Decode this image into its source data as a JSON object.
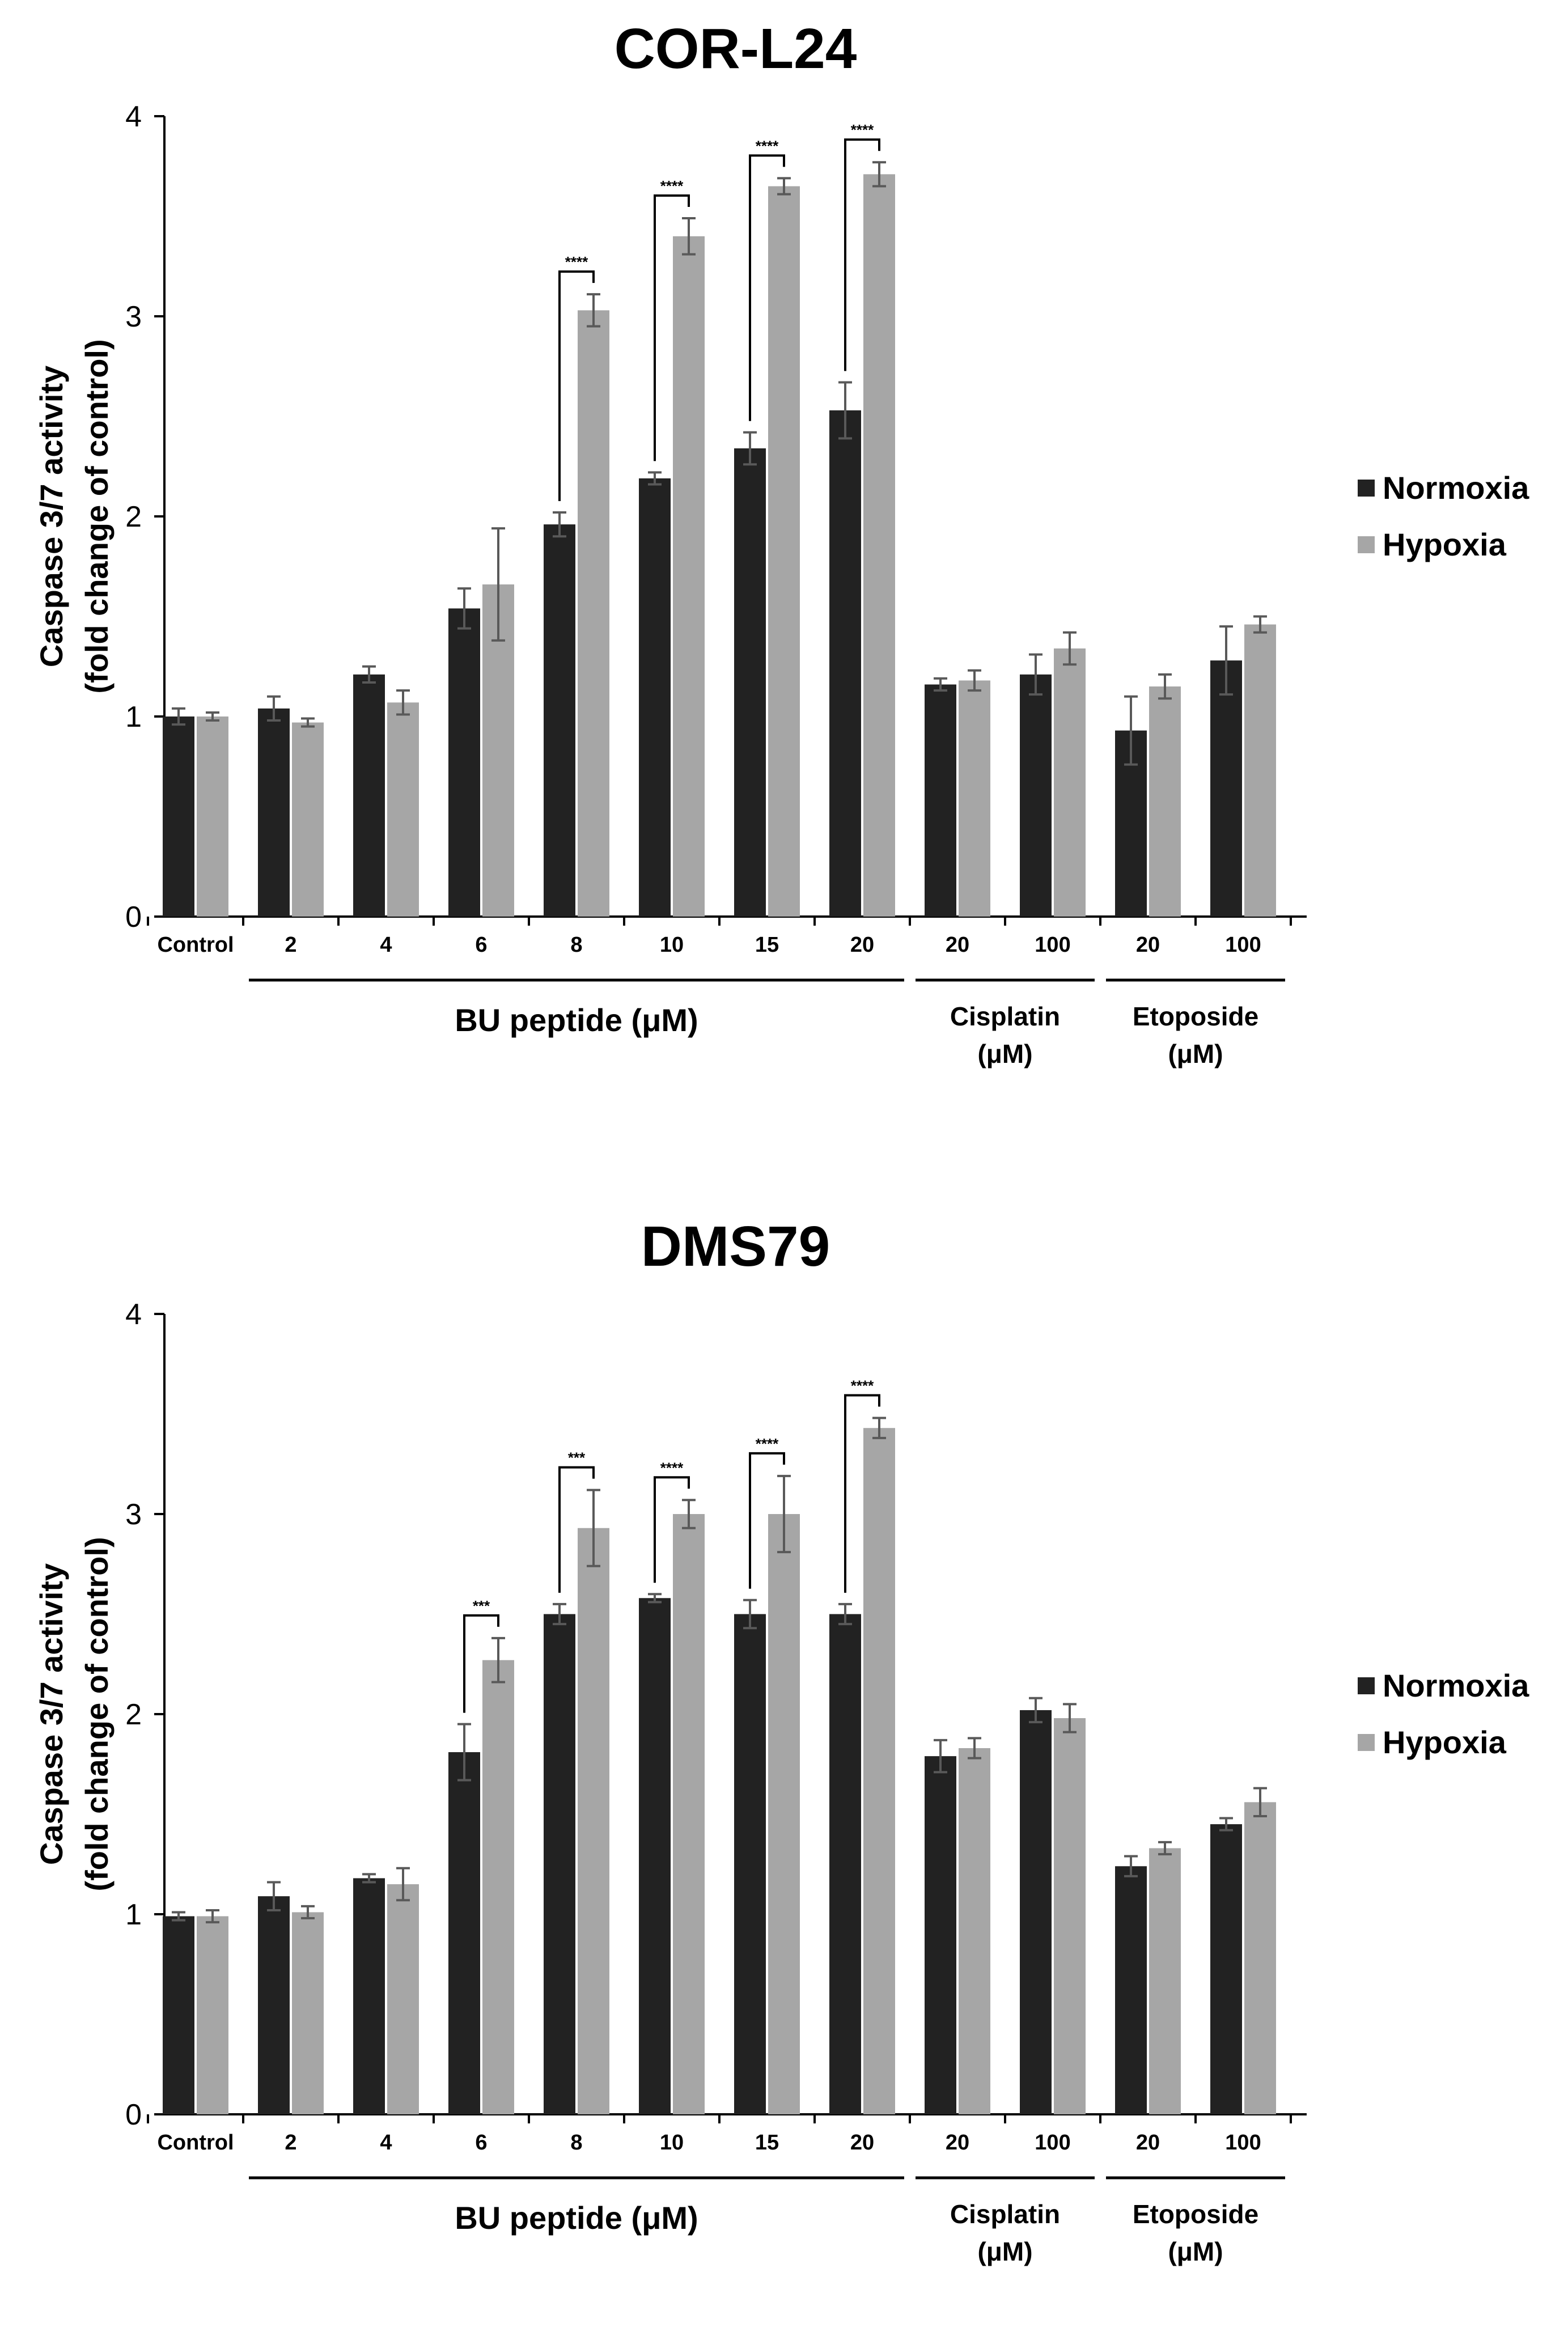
{
  "chart_data": [
    {
      "type": "bar",
      "title": "COR-L24",
      "ylabel": [
        "Caspase 3/7 activity",
        "(fold change of control)"
      ],
      "ylim": [
        0,
        4
      ],
      "yticks": [
        "0",
        "1",
        "2",
        "3",
        "4"
      ],
      "categories": [
        "Control",
        "2",
        "4",
        "6",
        "8",
        "10",
        "15",
        "20",
        "20",
        "100",
        "20",
        "100"
      ],
      "groups": [
        {
          "label": [
            "BU peptide (μM)"
          ],
          "from": 1,
          "to": 7
        },
        {
          "label": [
            "Cisplatin",
            "(μM)"
          ],
          "from": 8,
          "to": 9
        },
        {
          "label": [
            "Etoposide",
            "(μM)"
          ],
          "from": 10,
          "to": 11
        }
      ],
      "legend": "right",
      "series": [
        {
          "name": "Normoxia",
          "color": "#222222",
          "values": [
            1.0,
            1.04,
            1.21,
            1.54,
            1.96,
            2.19,
            2.34,
            2.53,
            1.16,
            1.21,
            0.93,
            1.28
          ],
          "errors": [
            0.04,
            0.06,
            0.04,
            0.1,
            0.06,
            0.03,
            0.08,
            0.14,
            0.03,
            0.1,
            0.17,
            0.17
          ]
        },
        {
          "name": "Hypoxia",
          "color": "#a6a6a6",
          "values": [
            1.0,
            0.97,
            1.07,
            1.66,
            3.03,
            3.4,
            3.65,
            3.71,
            1.18,
            1.34,
            1.15,
            1.46
          ],
          "errors": [
            0.02,
            0.02,
            0.06,
            0.28,
            0.08,
            0.09,
            0.04,
            0.06,
            0.05,
            0.08,
            0.06,
            0.04
          ]
        }
      ],
      "significance": [
        {
          "category": 4,
          "label": "****"
        },
        {
          "category": 5,
          "label": "****"
        },
        {
          "category": 6,
          "label": "****"
        },
        {
          "category": 7,
          "label": "****"
        }
      ]
    },
    {
      "type": "bar",
      "title": "DMS79",
      "ylabel": [
        "Caspase 3/7 activity",
        "(fold change of control)"
      ],
      "ylim": [
        0,
        4
      ],
      "yticks": [
        "0",
        "1",
        "2",
        "3",
        "4"
      ],
      "categories": [
        "Control",
        "2",
        "4",
        "6",
        "8",
        "10",
        "15",
        "20",
        "20",
        "100",
        "20",
        "100"
      ],
      "groups": [
        {
          "label": [
            "BU peptide (μM)"
          ],
          "from": 1,
          "to": 7
        },
        {
          "label": [
            "Cisplatin",
            "(μM)"
          ],
          "from": 8,
          "to": 9
        },
        {
          "label": [
            "Etoposide",
            "(μM)"
          ],
          "from": 10,
          "to": 11
        }
      ],
      "legend": "right",
      "series": [
        {
          "name": "Normoxia",
          "color": "#222222",
          "values": [
            0.99,
            1.09,
            1.18,
            1.81,
            2.5,
            2.58,
            2.5,
            2.5,
            1.79,
            2.02,
            1.24,
            1.45
          ],
          "errors": [
            0.02,
            0.07,
            0.02,
            0.14,
            0.05,
            0.02,
            0.07,
            0.05,
            0.08,
            0.06,
            0.05,
            0.03
          ]
        },
        {
          "name": "Hypoxia",
          "color": "#a6a6a6",
          "values": [
            0.99,
            1.01,
            1.15,
            2.27,
            2.93,
            3.0,
            3.0,
            3.43,
            1.83,
            1.98,
            1.33,
            1.56
          ],
          "errors": [
            0.03,
            0.03,
            0.08,
            0.11,
            0.19,
            0.07,
            0.19,
            0.05,
            0.05,
            0.07,
            0.03,
            0.07
          ]
        }
      ],
      "significance": [
        {
          "category": 3,
          "label": "***"
        },
        {
          "category": 4,
          "label": "***"
        },
        {
          "category": 5,
          "label": "****"
        },
        {
          "category": 6,
          "label": "****"
        },
        {
          "category": 7,
          "label": "****"
        }
      ]
    }
  ]
}
